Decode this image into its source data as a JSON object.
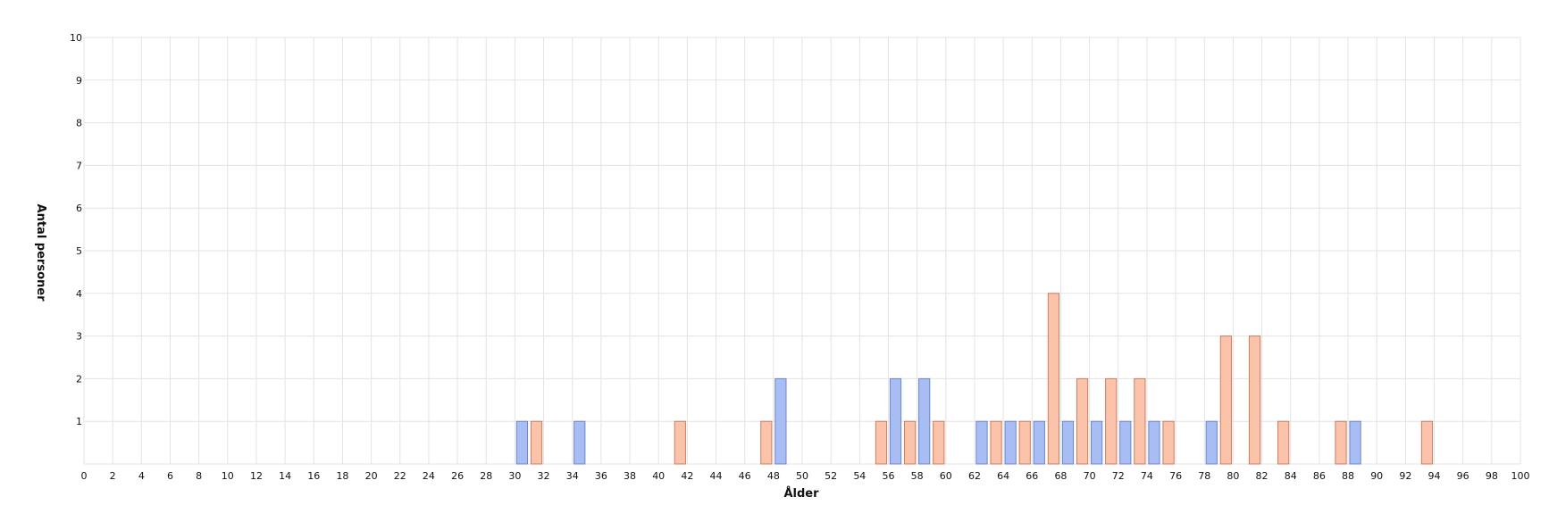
{
  "chart_data": {
    "type": "bar",
    "xlabel": "Ålder",
    "ylabel": "Antal personer",
    "xlim": [
      0,
      100
    ],
    "ylim": [
      0,
      10
    ],
    "x_tick_step": 2,
    "y_ticks": [
      1,
      2,
      3,
      4,
      5,
      6,
      7,
      8,
      9,
      10
    ],
    "grid": true,
    "series": [
      {
        "color": "#a7bdf3",
        "stroke": "#6f86c9",
        "points": [
          {
            "x": 30,
            "y": 1
          },
          {
            "x": 34,
            "y": 1
          },
          {
            "x": 48,
            "y": 2
          },
          {
            "x": 56,
            "y": 2
          },
          {
            "x": 58,
            "y": 2
          },
          {
            "x": 62,
            "y": 1
          },
          {
            "x": 64,
            "y": 1
          },
          {
            "x": 66,
            "y": 1
          },
          {
            "x": 68,
            "y": 1
          },
          {
            "x": 70,
            "y": 1
          },
          {
            "x": 72,
            "y": 1
          },
          {
            "x": 74,
            "y": 1
          },
          {
            "x": 78,
            "y": 1
          },
          {
            "x": 88,
            "y": 1
          }
        ]
      },
      {
        "color": "#fbc3aa",
        "stroke": "#c97d63",
        "points": [
          {
            "x": 31,
            "y": 1
          },
          {
            "x": 41,
            "y": 1
          },
          {
            "x": 47,
            "y": 1
          },
          {
            "x": 55,
            "y": 1
          },
          {
            "x": 57,
            "y": 1
          },
          {
            "x": 59,
            "y": 1
          },
          {
            "x": 63,
            "y": 1
          },
          {
            "x": 65,
            "y": 1
          },
          {
            "x": 67,
            "y": 4
          },
          {
            "x": 69,
            "y": 2
          },
          {
            "x": 71,
            "y": 2
          },
          {
            "x": 73,
            "y": 2
          },
          {
            "x": 75,
            "y": 1
          },
          {
            "x": 79,
            "y": 3
          },
          {
            "x": 81,
            "y": 3
          },
          {
            "x": 83,
            "y": 1
          },
          {
            "x": 87,
            "y": 1
          },
          {
            "x": 93,
            "y": 1
          }
        ]
      }
    ]
  }
}
